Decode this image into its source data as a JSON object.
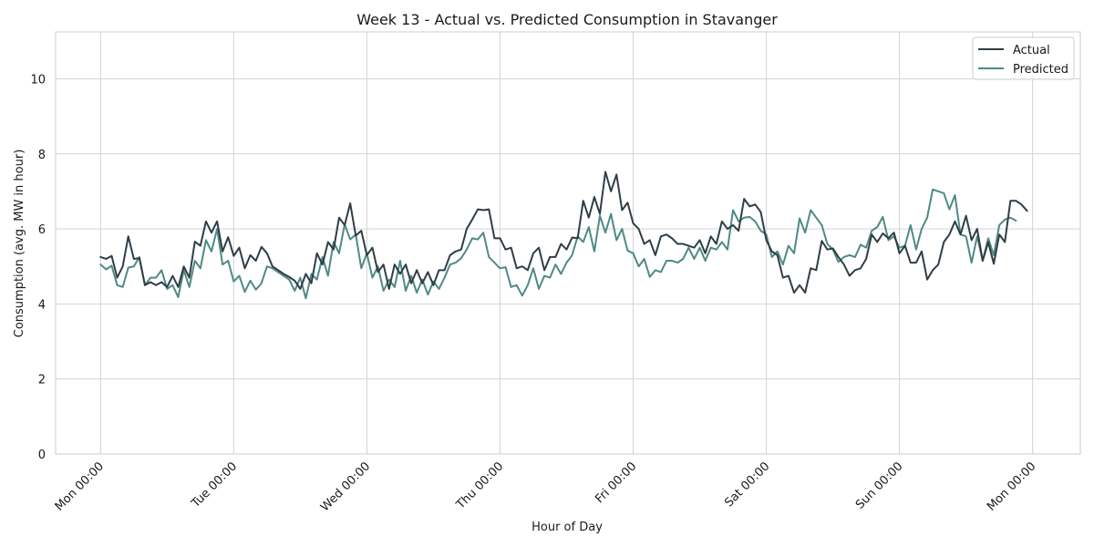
{
  "chart_data": {
    "type": "line",
    "title": "Week 13 - Actual vs. Predicted Consumption in Stavanger",
    "xlabel": "Hour of Day",
    "ylabel": "Consumption (avg. MW in hour)",
    "ylim": [
      0,
      11.25
    ],
    "xlim": [
      -8.1,
      176.6
    ],
    "yticks": [
      0,
      2,
      4,
      6,
      8,
      10
    ],
    "xticks": [
      {
        "x": 0,
        "label": "Mon 00:00"
      },
      {
        "x": 24,
        "label": "Tue 00:00"
      },
      {
        "x": 48,
        "label": "Wed 00:00"
      },
      {
        "x": 72,
        "label": "Thu 00:00"
      },
      {
        "x": 96,
        "label": "Fri 00:00"
      },
      {
        "x": 120,
        "label": "Sat 00:00"
      },
      {
        "x": 144,
        "label": "Sun 00:00"
      },
      {
        "x": 168,
        "label": "Mon 00:00"
      }
    ],
    "grid": true,
    "legend_position": "top-right",
    "x_step_hours": 1,
    "series": [
      {
        "name": "Actual",
        "color": "#2f3e46",
        "values": [
          5.25,
          5.2,
          5.28,
          4.7,
          5.0,
          5.8,
          5.2,
          5.22,
          4.5,
          4.58,
          4.5,
          4.58,
          4.45,
          4.75,
          4.45,
          5.0,
          4.7,
          5.66,
          5.55,
          6.2,
          5.9,
          6.2,
          5.4,
          5.78,
          5.28,
          5.5,
          4.95,
          5.3,
          5.15,
          5.52,
          5.35,
          5.0,
          4.9,
          4.8,
          4.72,
          4.62,
          4.4,
          4.8,
          4.55,
          5.35,
          5.05,
          5.65,
          5.45,
          6.3,
          6.1,
          6.68,
          5.82,
          5.95,
          5.3,
          5.5,
          4.85,
          5.05,
          4.4,
          5.05,
          4.8,
          5.05,
          4.55,
          4.9,
          4.55,
          4.85,
          4.5,
          4.9,
          4.9,
          5.3,
          5.4,
          5.45,
          6.0,
          6.25,
          6.52,
          6.5,
          6.52,
          5.75,
          5.75,
          5.45,
          5.5,
          4.95,
          5.0,
          4.9,
          5.35,
          5.5,
          4.9,
          5.25,
          5.25,
          5.6,
          5.45,
          5.77,
          5.75,
          6.75,
          6.3,
          6.85,
          6.4,
          7.52,
          7.0,
          7.45,
          6.5,
          6.7,
          6.15,
          6.0,
          5.6,
          5.7,
          5.3,
          5.8,
          5.85,
          5.75,
          5.6,
          5.6,
          5.55,
          5.5,
          5.7,
          5.35,
          5.8,
          5.6,
          6.2,
          6.0,
          6.1,
          5.95,
          6.8,
          6.6,
          6.65,
          6.45,
          5.7,
          5.4,
          5.3,
          4.7,
          4.75,
          4.3,
          4.5,
          4.3,
          4.95,
          4.9,
          5.68,
          5.45,
          5.48,
          5.25,
          5.05,
          4.75,
          4.9,
          4.95,
          5.2,
          5.85,
          5.65,
          5.88,
          5.75,
          5.9,
          5.35,
          5.55,
          5.1,
          5.1,
          5.4,
          4.65,
          4.9,
          5.05,
          5.65,
          5.85,
          6.2,
          5.85,
          6.35,
          5.7,
          6.0,
          5.15,
          5.65,
          5.07,
          5.85,
          5.65,
          6.75,
          6.75,
          6.65,
          6.48
        ]
      },
      {
        "name": "Predicted",
        "color": "#4f8a85",
        "values": [
          5.05,
          4.92,
          5.02,
          4.5,
          4.45,
          4.97,
          5.0,
          5.25,
          4.5,
          4.7,
          4.7,
          4.9,
          4.4,
          4.5,
          4.18,
          4.9,
          4.45,
          5.15,
          4.95,
          5.7,
          5.4,
          6.0,
          5.05,
          5.15,
          4.6,
          4.75,
          4.32,
          4.62,
          4.38,
          4.55,
          5.0,
          4.95,
          4.85,
          4.75,
          4.65,
          4.35,
          4.7,
          4.15,
          4.8,
          4.65,
          5.25,
          4.75,
          5.65,
          5.35,
          6.12,
          5.72,
          5.85,
          4.95,
          5.35,
          4.7,
          5.0,
          4.35,
          4.65,
          4.45,
          5.15,
          4.35,
          4.75,
          4.3,
          4.65,
          4.25,
          4.6,
          4.4,
          4.7,
          5.05,
          5.1,
          5.22,
          5.45,
          5.75,
          5.72,
          5.9,
          5.25,
          5.1,
          4.95,
          4.98,
          4.45,
          4.5,
          4.22,
          4.5,
          4.95,
          4.4,
          4.75,
          4.7,
          5.05,
          4.8,
          5.1,
          5.3,
          5.8,
          5.65,
          6.05,
          5.4,
          6.35,
          5.9,
          6.4,
          5.7,
          6.0,
          5.42,
          5.35,
          5.0,
          5.2,
          4.72,
          4.9,
          4.85,
          5.15,
          5.15,
          5.1,
          5.2,
          5.5,
          5.2,
          5.5,
          5.15,
          5.5,
          5.45,
          5.65,
          5.45,
          6.5,
          6.2,
          6.3,
          6.32,
          6.2,
          5.95,
          5.85,
          5.25,
          5.4,
          5.05,
          5.55,
          5.35,
          6.28,
          5.9,
          6.5,
          6.3,
          6.1,
          5.6,
          5.45,
          5.12,
          5.25,
          5.3,
          5.25,
          5.58,
          5.5,
          5.95,
          6.05,
          6.32,
          5.7,
          5.8,
          5.5,
          5.55,
          6.1,
          5.45,
          6.0,
          6.3,
          7.05,
          7.0,
          6.95,
          6.52,
          6.9,
          5.85,
          5.8,
          5.1,
          5.8,
          5.15,
          5.75,
          5.3,
          6.1,
          6.25,
          6.3,
          6.22
        ]
      }
    ]
  }
}
